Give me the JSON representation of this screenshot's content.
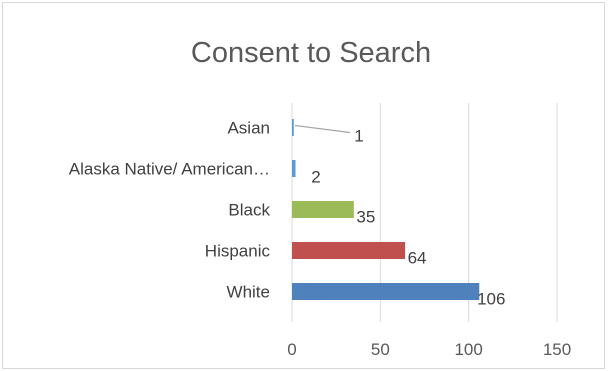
{
  "chart_data": {
    "type": "bar",
    "orientation": "horizontal",
    "title": "Consent to Search",
    "xlabel": "",
    "ylabel": "",
    "xlim": [
      0,
      150
    ],
    "x_ticks": [
      "0",
      "50",
      "100",
      "150"
    ],
    "grid": true,
    "legend": "none",
    "categories": [
      "Asian",
      "Alaska Native/ American…",
      "Black",
      "Hispanic",
      "White"
    ],
    "values": [
      1,
      2,
      35,
      64,
      106
    ],
    "data_labels": [
      "1",
      "2",
      "35",
      "64",
      "106"
    ],
    "colors": [
      "#5b9bd5",
      "#5b9bd5",
      "#9bbb59",
      "#c0504d",
      "#4f81bd"
    ],
    "leader_line_color": "#a6a6a6"
  }
}
